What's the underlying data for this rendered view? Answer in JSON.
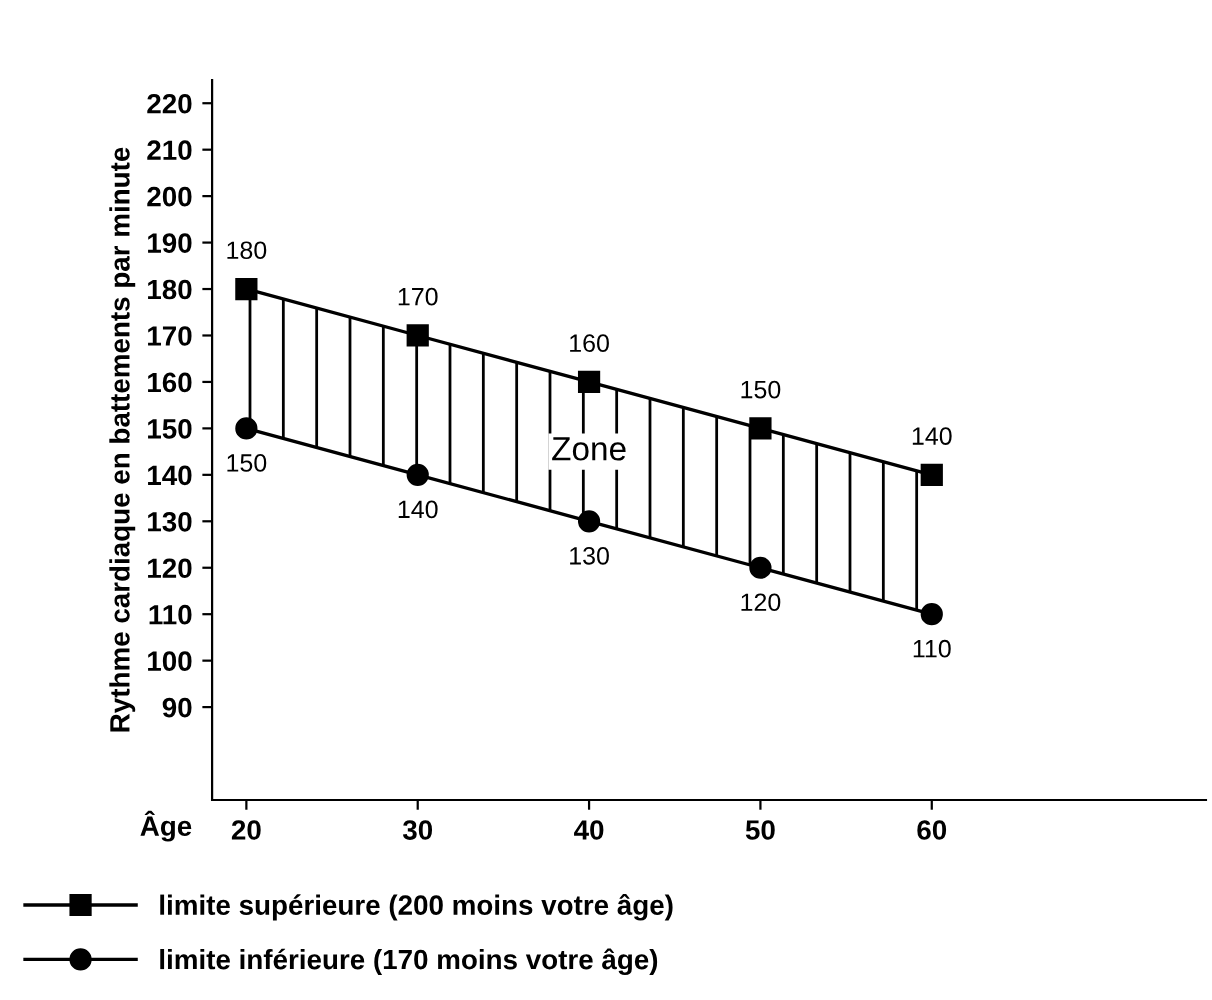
{
  "chart_data": {
    "type": "line",
    "ylabel": "Rythme cardiaque en battements par minute",
    "xlabel": "Âge",
    "x": [
      20,
      30,
      40,
      50,
      60
    ],
    "series": [
      {
        "name": "limite supérieure (200 moins votre âge)",
        "color": "#000000",
        "marker": "square",
        "values": [
          180,
          170,
          160,
          150,
          140
        ],
        "lower": [
          150,
          140,
          130,
          120,
          110
        ],
        "upper": [
          180,
          170,
          160,
          150,
          140
        ]
      },
      {
        "name": "limite inférieure (170 moins votre âge)",
        "color": "#000000",
        "marker": "circle",
        "values": [
          150,
          140,
          130,
          120,
          110
        ]
      }
    ],
    "annotations": [
      {
        "text": "Zone",
        "x": 40,
        "y": 145
      }
    ],
    "data_labels": true,
    "xlim": [
      18,
      76
    ],
    "xticks": [
      20,
      30,
      40,
      50,
      60
    ],
    "ylim": [
      70,
      225
    ],
    "yticks": [
      90,
      100,
      110,
      120,
      130,
      140,
      150,
      160,
      170,
      180,
      190,
      200,
      210,
      220
    ],
    "grid": false,
    "legend": "bottom",
    "line_style": "solid"
  }
}
